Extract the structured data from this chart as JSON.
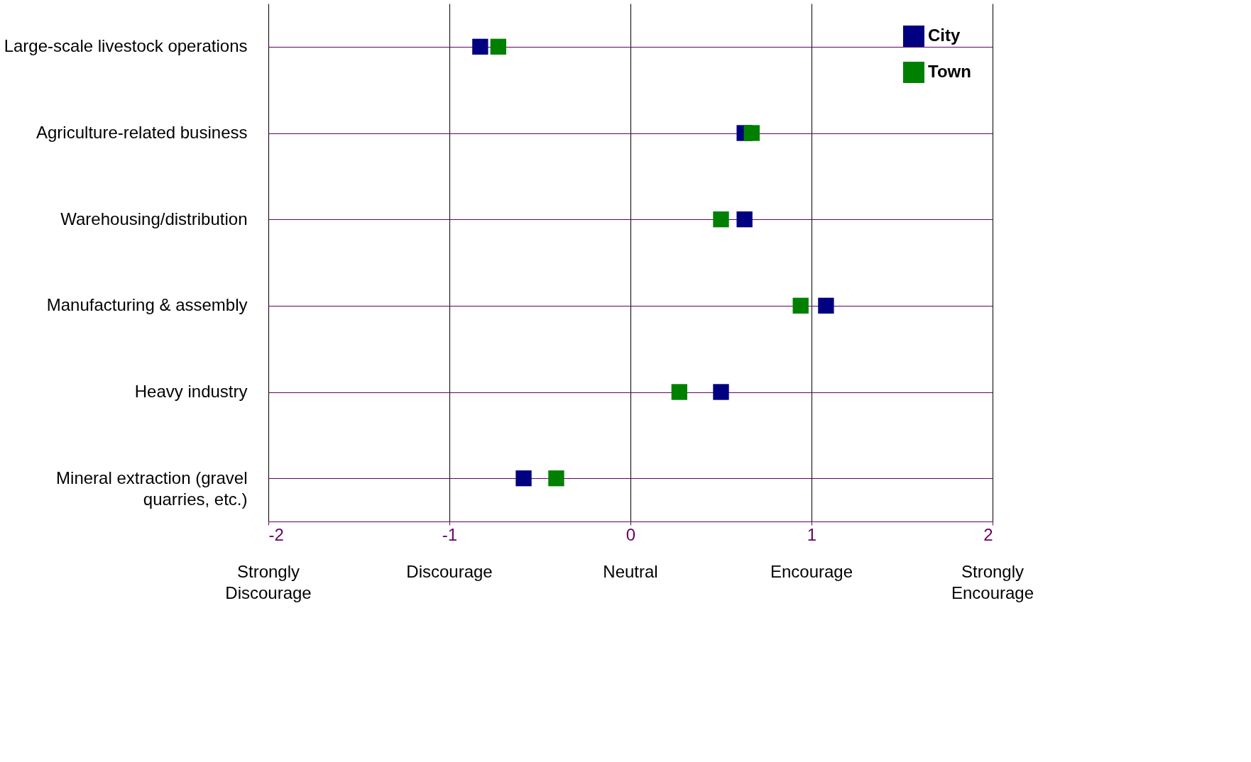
{
  "chart_data": {
    "type": "scatter",
    "categories": [
      "Large-scale livestock operations",
      "Agriculture-related business",
      "Warehousing/distribution",
      "Manufacturing & assembly",
      "Heavy industry",
      "Mineral extraction (gravel quarries, etc.)"
    ],
    "series": [
      {
        "name": "City",
        "color": "#000080",
        "values": [
          -0.83,
          0.63,
          0.63,
          1.08,
          0.5,
          -0.59
        ]
      },
      {
        "name": "Town",
        "color": "#008000",
        "values": [
          -0.73,
          0.67,
          0.5,
          0.94,
          0.27,
          -0.41
        ]
      }
    ],
    "orientation": "horizontal",
    "xlim": [
      -2,
      2
    ],
    "xticks": [
      -2,
      -1,
      0,
      1,
      2
    ],
    "annotations": [
      "Strongly Discourage",
      "Discourage",
      "Neutral",
      "Encourage",
      "Strongly Encourage"
    ],
    "grid": true,
    "legend": "top right",
    "marker": "square"
  }
}
